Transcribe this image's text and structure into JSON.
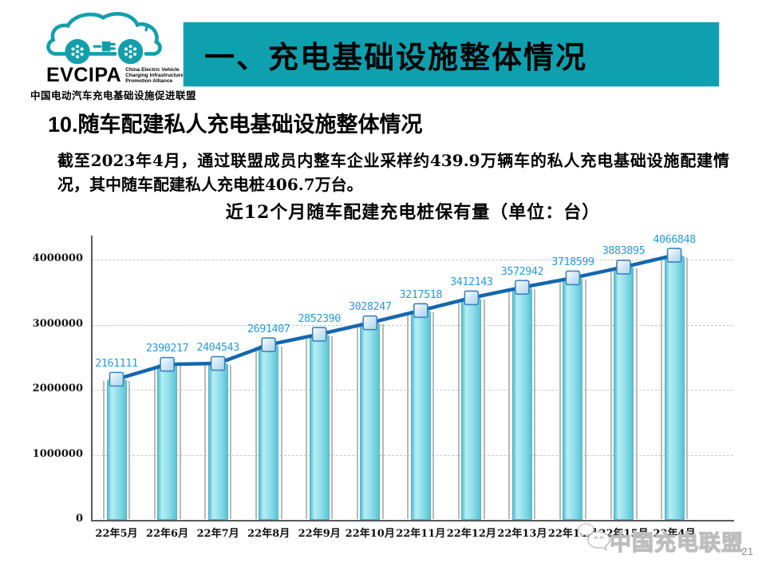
{
  "header": {
    "logo": {
      "acronym": "EVCIPA",
      "english_lines": [
        "China Electric Vehicle",
        "Charging Infrastructure",
        "Promotion Alliance"
      ],
      "chinese": "中国电动汽车充电基础设施促进联盟",
      "brand_color": "#149EAC"
    },
    "banner": {
      "title": "一、充电基础设施整体情况",
      "background": "#0FA0AF",
      "text_color": "#000000"
    }
  },
  "section": {
    "number": "10.",
    "title": "随车配建私人充电基础设施整体情况",
    "body": "截至2023年4月，通过联盟成员内整车企业采样约439.9万辆车的私人充电基础设施配建情况，其中随车配建私人充电桩406.7万台。"
  },
  "chart_data": {
    "type": "bar",
    "line_overlay": true,
    "title": "近12个月随车配建充电桩保有量（单位：台）",
    "categories": [
      "22年5月",
      "22年6月",
      "22年7月",
      "22年8月",
      "22年9月",
      "22年10月",
      "22年11月",
      "22年12月",
      "22年13月",
      "22年14月",
      "22年15月",
      "23年4月"
    ],
    "values": [
      2161111,
      2390217,
      2404543,
      2691407,
      2852390,
      3028247,
      3217518,
      3412143,
      3572942,
      3718599,
      3883895,
      4066848
    ],
    "yticks": [
      0,
      1000000,
      2000000,
      3000000,
      4000000
    ],
    "ylim": [
      0,
      4400000
    ],
    "xlabel": "",
    "ylabel": "",
    "grid": true,
    "legend": false,
    "data_labels": true,
    "colors": {
      "bar": "#85DBE9",
      "bar_edge": "#55B4C8",
      "bar_shadow": "#B9B9B9",
      "line": "#1467AE",
      "marker": "#A9D3EE",
      "marker_edge": "#3D83BC",
      "data_label": "#2B9AD8",
      "grid": "#C8C8C8",
      "axis": "#5A5A5A"
    }
  },
  "footer": {
    "watermark_text": "中国充电联盟",
    "watermark_icon": "wechat-icon",
    "page_number": "21"
  }
}
